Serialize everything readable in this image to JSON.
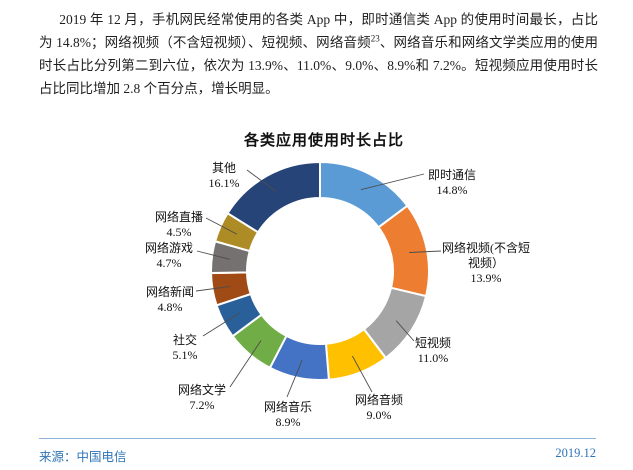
{
  "paragraph": {
    "part1": "2019 年 12 月，手机网民经常使用的各类 App 中，即时通信类 App 的使用时间最长，占比为 14.8%；网络视频（不含短视频）、短视频、网络音频",
    "footnote_sup": "23",
    "part2": "、网络音乐和网络文学类应用的使用时长占比分列第二到六位，依次为 13.9%、11.0%、9.0%、8.9%和 7.2%。短视频应用使用时长占比同比增加 2.8 个百分点，增长明显。"
  },
  "chart_data": {
    "type": "pie",
    "subtype": "donut",
    "title": "各类应用使用时长占比",
    "unit": "%",
    "start_angle_deg": 0,
    "direction": "clockwise",
    "total": 100.0,
    "segments": [
      {
        "label": "即时通信",
        "value": 14.8,
        "color": "#5B9BD5"
      },
      {
        "label": "网络视频(不含短视频)",
        "value": 13.9,
        "color": "#ED7D31",
        "display_lines": [
          "网络视频(不含短",
          "视频）"
        ]
      },
      {
        "label": "短视频",
        "value": 11.0,
        "color": "#A5A5A5"
      },
      {
        "label": "网络音频",
        "value": 9.0,
        "color": "#FFC000"
      },
      {
        "label": "网络音乐",
        "value": 8.9,
        "color": "#4472C4"
      },
      {
        "label": "网络文学",
        "value": 7.2,
        "color": "#70AD47"
      },
      {
        "label": "社交",
        "value": 5.1,
        "color": "#2A6099"
      },
      {
        "label": "网络新闻",
        "value": 4.8,
        "color": "#A04A15"
      },
      {
        "label": "网络游戏",
        "value": 4.7,
        "color": "#767171"
      },
      {
        "label": "网络直播",
        "value": 4.5,
        "color": "#AD8B25"
      },
      {
        "label": "其他",
        "value": 16.1,
        "color": "#264478"
      }
    ]
  },
  "footer": {
    "source": "来源：中国电信",
    "date": "2019.12",
    "accent_color": "#2E74B5",
    "rule_color": "#8EB4DC"
  }
}
